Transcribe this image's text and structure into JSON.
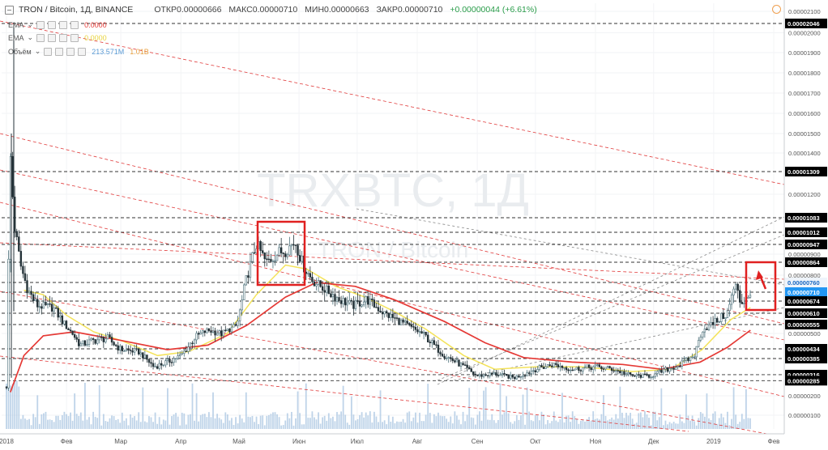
{
  "header": {
    "title": "TRON / Bitcoin, 1Д, BINANCE",
    "open": "ОТКР0.00000666",
    "high": "МАКС0.00000710",
    "low": "МИН0.00000663",
    "close": "ЗАКР0.00000710",
    "change": "+0.00000044 (+6.61%)"
  },
  "indicators": [
    {
      "name": "EMA",
      "value": "0.0000",
      "color": "#e53935"
    },
    {
      "name": "EMA",
      "value": "0.0000",
      "color": "#f4e35a"
    },
    {
      "name": "Объём",
      "value": "213.571M",
      "value2": "1.01B",
      "color": "#5b9bd5"
    }
  ],
  "watermark": {
    "symbol": "TRXBTC, 1Д",
    "name": "TRON / Bitcoin"
  },
  "colors": {
    "up": "#4a6e78",
    "down": "#243238",
    "ema_fast": "#f4e35a",
    "ema_slow": "#e53935",
    "volume": "#aac6e2",
    "trend_red": "#e03a3a",
    "trend_gray": "#8a8a8a",
    "hline": "#333333",
    "box": "#e02020",
    "last_price": "#2196f3"
  },
  "chart_data": {
    "type": "candlestick",
    "x_axis_labels": [
      "2018",
      "Фев",
      "Мар",
      "Апр",
      "Май",
      "Июн",
      "Июл",
      "Авг",
      "Сен",
      "Окт",
      "Ноя",
      "Дек",
      "2019",
      "Фев"
    ],
    "y_axis_labels": [
      "0.00002100",
      "0.00002000",
      "0.00001900",
      "0.00001800",
      "0.00001700",
      "0.00001600",
      "0.00001500",
      "0.00001400",
      "0.00001200",
      "0.00000900",
      "0.00000800",
      "0.00000500",
      "0.00000200",
      "0.00000100"
    ],
    "ylim": [
      6e-07,
      2.1e-06
    ],
    "horizontal_levels": [
      "0.00002046",
      "0.00001309",
      "0.00001083",
      "0.00001012",
      "0.00000947",
      "0.00000864",
      "0.00000760",
      "0.00000710",
      "0.00000674",
      "0.00000610",
      "0.00000555",
      "0.00000434",
      "0.00000385",
      "0.00000316",
      "0.00000285"
    ],
    "last_price": "0.00000710",
    "price_path": [
      [
        "2018-01-01",
        2.5e-06
      ],
      [
        "2018-01-03",
        1.4e-05
      ],
      [
        "2018-01-05",
        1.05e-05
      ],
      [
        "2018-01-08",
        8.6e-06
      ],
      [
        "2018-01-12",
        7.2e-06
      ],
      [
        "2018-01-17",
        6.5e-06
      ],
      [
        "2018-01-25",
        6.4e-06
      ],
      [
        "2018-02-01",
        5.4e-06
      ],
      [
        "2018-02-08",
        4.5e-06
      ],
      [
        "2018-02-15",
        4.7e-06
      ],
      [
        "2018-02-22",
        4.8e-06
      ],
      [
        "2018-03-01",
        4.3e-06
      ],
      [
        "2018-03-10",
        4.2e-06
      ],
      [
        "2018-03-18",
        3.5e-06
      ],
      [
        "2018-03-25",
        3.7e-06
      ],
      [
        "2018-04-01",
        4e-06
      ],
      [
        "2018-04-08",
        4.8e-06
      ],
      [
        "2018-04-15",
        5.2e-06
      ],
      [
        "2018-04-22",
        5e-06
      ],
      [
        "2018-04-30",
        5.5e-06
      ],
      [
        "2018-05-05",
        7.9e-06
      ],
      [
        "2018-05-10",
        9.5e-06
      ],
      [
        "2018-05-15",
        8.6e-06
      ],
      [
        "2018-05-20",
        9e-06
      ],
      [
        "2018-05-25",
        9.2e-06
      ],
      [
        "2018-05-30",
        9.6e-06
      ],
      [
        "2018-06-03",
        8.5e-06
      ],
      [
        "2018-06-08",
        7.7e-06
      ],
      [
        "2018-06-15",
        7.2e-06
      ],
      [
        "2018-06-22",
        6.8e-06
      ],
      [
        "2018-06-29",
        6.5e-06
      ],
      [
        "2018-07-06",
        6.8e-06
      ],
      [
        "2018-07-15",
        6.1e-06
      ],
      [
        "2018-07-25",
        5.6e-06
      ],
      [
        "2018-08-05",
        4.9e-06
      ],
      [
        "2018-08-15",
        4e-06
      ],
      [
        "2018-08-25",
        3.5e-06
      ],
      [
        "2018-09-01",
        3.1e-06
      ],
      [
        "2018-09-10",
        3.2e-06
      ],
      [
        "2018-09-20",
        3e-06
      ],
      [
        "2018-10-01",
        3.4e-06
      ],
      [
        "2018-10-10",
        3.6e-06
      ],
      [
        "2018-10-20",
        3.4e-06
      ],
      [
        "2018-11-01",
        3.5e-06
      ],
      [
        "2018-11-10",
        3.4e-06
      ],
      [
        "2018-11-20",
        3.1e-06
      ],
      [
        "2018-11-30",
        3.1e-06
      ],
      [
        "2018-12-05",
        3.3e-06
      ],
      [
        "2018-12-15",
        3.6e-06
      ],
      [
        "2018-12-22",
        4e-06
      ],
      [
        "2018-12-26",
        5.2e-06
      ],
      [
        "2019-01-02",
        5.7e-06
      ],
      [
        "2019-01-08",
        6.1e-06
      ],
      [
        "2019-01-12",
        7.5e-06
      ],
      [
        "2019-01-15",
        6.6e-06
      ],
      [
        "2019-01-20",
        7.1e-06
      ]
    ],
    "ema_fast": [
      [
        "2018-01-10",
        7.2e-06
      ],
      [
        "2018-01-20",
        7e-06
      ],
      [
        "2018-02-01",
        6e-06
      ],
      [
        "2018-02-15",
        5.1e-06
      ],
      [
        "2018-03-01",
        4.7e-06
      ],
      [
        "2018-03-20",
        4e-06
      ],
      [
        "2018-04-05",
        4.2e-06
      ],
      [
        "2018-04-25",
        5e-06
      ],
      [
        "2018-05-10",
        7e-06
      ],
      [
        "2018-05-25",
        8.5e-06
      ],
      [
        "2018-06-05",
        8.3e-06
      ],
      [
        "2018-06-20",
        7.4e-06
      ],
      [
        "2018-07-05",
        6.9e-06
      ],
      [
        "2018-07-20",
        6.2e-06
      ],
      [
        "2018-08-05",
        5.3e-06
      ],
      [
        "2018-08-25",
        4e-06
      ],
      [
        "2018-09-10",
        3.4e-06
      ],
      [
        "2018-10-01",
        3.5e-06
      ],
      [
        "2018-10-25",
        3.5e-06
      ],
      [
        "2018-11-20",
        3.3e-06
      ],
      [
        "2018-12-10",
        3.4e-06
      ],
      [
        "2018-12-26",
        4.3e-06
      ],
      [
        "2019-01-10",
        5.8e-06
      ],
      [
        "2019-01-20",
        6.4e-06
      ]
    ],
    "ema_slow": [
      [
        "2018-01-03",
        2.2e-06
      ],
      [
        "2018-01-10",
        4e-06
      ],
      [
        "2018-01-20",
        4.9e-06
      ],
      [
        "2018-02-05",
        5.1e-06
      ],
      [
        "2018-03-01",
        4.7e-06
      ],
      [
        "2018-03-25",
        4.3e-06
      ],
      [
        "2018-04-15",
        4.5e-06
      ],
      [
        "2018-05-05",
        5.5e-06
      ],
      [
        "2018-05-25",
        6.9e-06
      ],
      [
        "2018-06-10",
        7.6e-06
      ],
      [
        "2018-06-30",
        7.4e-06
      ],
      [
        "2018-07-20",
        6.8e-06
      ],
      [
        "2018-08-15",
        5.7e-06
      ],
      [
        "2018-09-05",
        4.6e-06
      ],
      [
        "2018-09-25",
        3.9e-06
      ],
      [
        "2018-10-20",
        3.7e-06
      ],
      [
        "2018-11-15",
        3.6e-06
      ],
      [
        "2018-12-05",
        3.4e-06
      ],
      [
        "2018-12-25",
        3.7e-06
      ],
      [
        "2019-01-08",
        4.4e-06
      ],
      [
        "2019-01-20",
        5.2e-06
      ]
    ]
  }
}
